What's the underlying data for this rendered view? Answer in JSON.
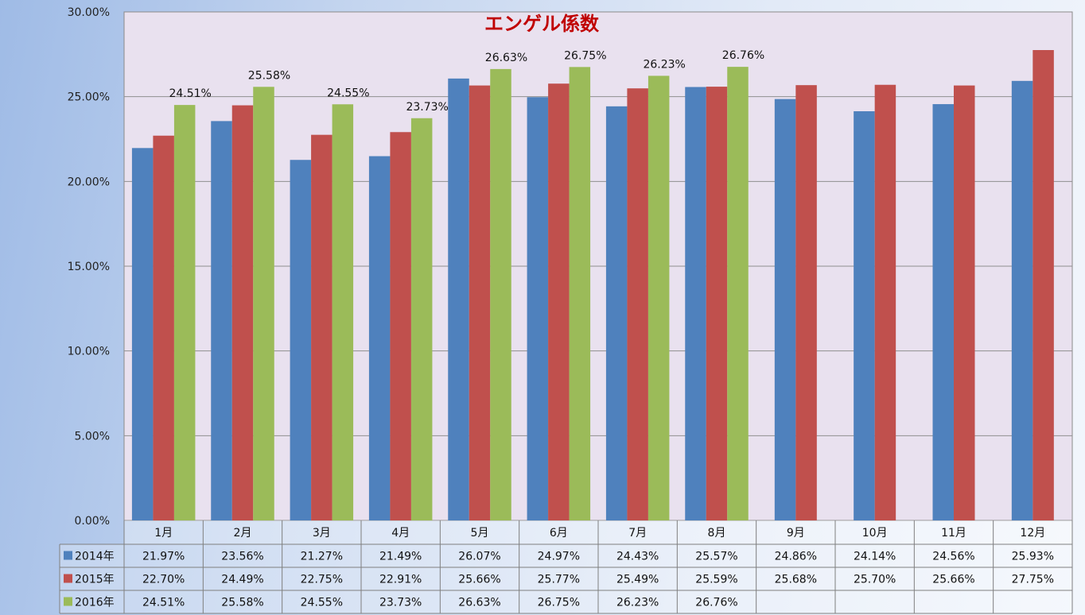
{
  "chart_data": {
    "type": "bar",
    "title": "エンゲル係数",
    "categories": [
      "1月",
      "2月",
      "3月",
      "4月",
      "5月",
      "6月",
      "7月",
      "8月",
      "9月",
      "10月",
      "11月",
      "12月"
    ],
    "ylim": [
      0,
      30
    ],
    "yticks": [
      "0.00%",
      "5.00%",
      "10.00%",
      "15.00%",
      "20.00%",
      "25.00%",
      "30.00%"
    ],
    "grid": true,
    "legend": "data-table",
    "series": [
      {
        "name": "2014年",
        "color": "#4f81bd",
        "values": [
          21.97,
          23.56,
          21.27,
          21.49,
          26.07,
          24.97,
          24.43,
          25.57,
          24.86,
          24.14,
          24.56,
          25.93
        ],
        "labels": [
          "21.97%",
          "23.56%",
          "21.27%",
          "21.49%",
          "26.07%",
          "24.97%",
          "24.43%",
          "25.57%",
          "24.86%",
          "24.14%",
          "24.56%",
          "25.93%"
        ]
      },
      {
        "name": "2015年",
        "color": "#c0504d",
        "values": [
          22.7,
          24.49,
          22.75,
          22.91,
          25.66,
          25.77,
          25.49,
          25.59,
          25.68,
          25.7,
          25.66,
          27.75
        ],
        "labels": [
          "22.70%",
          "24.49%",
          "22.75%",
          "22.91%",
          "25.66%",
          "25.77%",
          "25.49%",
          "25.59%",
          "25.68%",
          "25.70%",
          "25.66%",
          "27.75%"
        ]
      },
      {
        "name": "2016年",
        "color": "#9bbb59",
        "values": [
          24.51,
          25.58,
          24.55,
          23.73,
          26.63,
          26.75,
          26.23,
          26.76,
          null,
          null,
          null,
          null
        ],
        "labels": [
          "24.51%",
          "25.58%",
          "24.55%",
          "23.73%",
          "26.63%",
          "26.75%",
          "26.23%",
          "26.76%",
          "",
          "",
          "",
          ""
        ]
      }
    ]
  }
}
